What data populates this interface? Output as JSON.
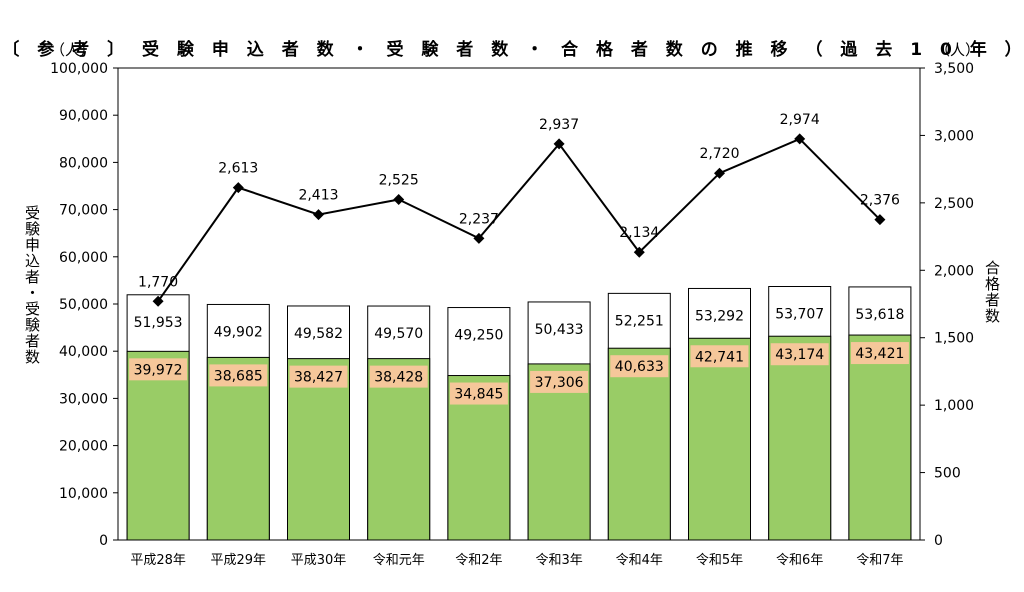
{
  "chart_data": {
    "type": "bar",
    "title": "〔 参 考 〕 受 験 申 込 者 数 ・ 受 験 者 数 ・ 合 格 者 数 の 推 移 （ 過 去 1 0 年 ）",
    "left_unit": "（人）",
    "right_unit": "（人）",
    "left_axis_label": "受験申込者・受験者数",
    "right_axis_label": "合格者数",
    "categories": [
      "平成28年",
      "平成29年",
      "平成30年",
      "令和元年",
      "令和2年",
      "令和3年",
      "令和4年",
      "令和5年",
      "令和6年",
      "令和7年"
    ],
    "ylim_left": [
      0,
      100000
    ],
    "yticks_left": [
      0,
      10000,
      20000,
      30000,
      40000,
      50000,
      60000,
      70000,
      80000,
      90000,
      100000
    ],
    "ylim_right": [
      0,
      3500
    ],
    "yticks_right": [
      0,
      500,
      1000,
      1500,
      2000,
      2500,
      3000,
      3500
    ],
    "series": [
      {
        "name": "受験申込者数",
        "axis": "left",
        "kind": "bar",
        "color": "#ffffff",
        "values": [
          51953,
          49902,
          49582,
          49570,
          49250,
          50433,
          52251,
          53292,
          53707,
          53618
        ]
      },
      {
        "name": "受験者数",
        "axis": "left",
        "kind": "bar",
        "color": "#99cc66",
        "label_bg": "#f5c79a",
        "values": [
          39972,
          38685,
          38427,
          38428,
          34845,
          37306,
          40633,
          42741,
          43174,
          43421
        ]
      },
      {
        "name": "合格者数",
        "axis": "right",
        "kind": "line",
        "color": "#000000",
        "values": [
          1770,
          2613,
          2413,
          2525,
          2237,
          2937,
          2134,
          2720,
          2974,
          2376
        ]
      }
    ]
  }
}
